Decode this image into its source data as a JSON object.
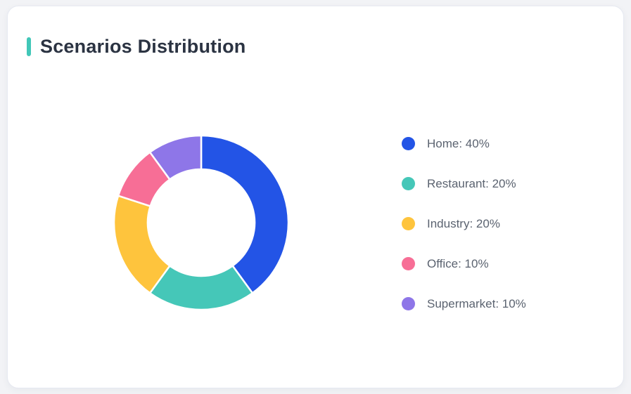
{
  "card": {
    "title": "Scenarios Distribution",
    "accent_color": "#41c7b8"
  },
  "chart_data": {
    "type": "pie",
    "subtype": "donut",
    "title": "Scenarios Distribution",
    "categories": [
      "Home",
      "Restaurant",
      "Industry",
      "Office",
      "Supermarket"
    ],
    "values": [
      40,
      20,
      20,
      10,
      10
    ],
    "unit": "%",
    "colors": [
      "#2354e6",
      "#45c7b8",
      "#fec43d",
      "#f76e96",
      "#8e76e8"
    ],
    "legend_labels": [
      "Home: 40%",
      "Restaurant: 20%",
      "Industry: 20%",
      "Office: 10%",
      "Supermarket: 10%"
    ],
    "legend_position": "right",
    "start_angle_deg": 0,
    "inner_radius_ratio": 0.613,
    "segment_gap_color": "#ffffff"
  }
}
